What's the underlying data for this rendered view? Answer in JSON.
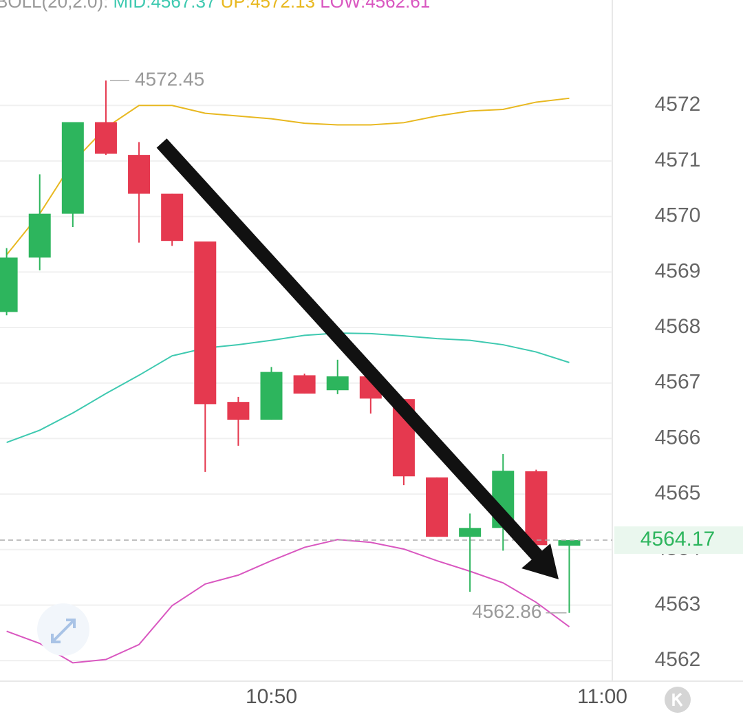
{
  "chart_data": {
    "type": "candlestick",
    "indicator_label": "BOLL(20,2.0):",
    "candles": {
      "up_color": "#2db55d",
      "down_color": "#e5394f",
      "open": [
        4568.28,
        4569.26,
        4570.05,
        4571.7,
        4571.11,
        4570.41,
        4569.55,
        4566.66,
        4566.34,
        4567.14,
        4566.87,
        4567.12,
        4566.71,
        4565.3,
        4564.23,
        4564.39,
        4565.41,
        4564.07
      ],
      "high": [
        4569.43,
        4570.76,
        4571.7,
        4572.45,
        4571.34,
        4570.41,
        4569.55,
        4566.75,
        4567.29,
        4567.17,
        4567.42,
        4567.12,
        4566.71,
        4565.3,
        4564.65,
        4565.72,
        4565.44,
        4564.17
      ],
      "low": [
        4568.22,
        4569.03,
        4569.81,
        4571.11,
        4569.53,
        4569.47,
        4565.4,
        4565.87,
        4566.34,
        4566.81,
        4566.8,
        4566.45,
        4565.16,
        4564.23,
        4563.24,
        4563.98,
        4564.08,
        4562.86
      ],
      "close": [
        4569.26,
        4570.05,
        4571.7,
        4571.13,
        4570.41,
        4569.56,
        4566.62,
        4566.34,
        4567.2,
        4566.81,
        4567.12,
        4566.72,
        4565.32,
        4564.23,
        4564.39,
        4565.42,
        4564.08,
        4564.17
      ]
    },
    "series": [
      {
        "name": "MID:",
        "color": "#3ec9b0",
        "values": [
          4565.93,
          4566.15,
          4566.46,
          4566.81,
          4567.14,
          4567.49,
          4567.63,
          4567.69,
          4567.77,
          4567.86,
          4567.9,
          4567.89,
          4567.85,
          4567.8,
          4567.77,
          4567.69,
          4567.56,
          4567.37
        ]
      },
      {
        "name": "UP:",
        "color": "#e8b820",
        "values": [
          4569.31,
          4570.05,
          4570.98,
          4571.6,
          4572.0,
          4572.0,
          4571.86,
          4571.81,
          4571.76,
          4571.68,
          4571.65,
          4571.65,
          4571.69,
          4571.81,
          4571.9,
          4571.93,
          4572.06,
          4572.13
        ]
      },
      {
        "name": "LOW:",
        "color": "#d957c0",
        "values": [
          4562.53,
          4562.31,
          4561.96,
          4562.02,
          4562.29,
          4562.99,
          4563.38,
          4563.54,
          4563.8,
          4564.04,
          4564.18,
          4564.13,
          4564.01,
          4563.8,
          4563.61,
          4563.4,
          4563.05,
          4562.61
        ]
      }
    ],
    "xlim": [
      -0.2,
      18.3
    ],
    "xticks": [
      {
        "value": 8,
        "label": "10:50"
      },
      {
        "value": 18,
        "label": "11:00"
      }
    ],
    "ylim": [
      4561.63,
      4573.9
    ],
    "yticks": [
      4562,
      4563,
      4564,
      4565,
      4566,
      4567,
      4568,
      4569,
      4570,
      4571,
      4572
    ],
    "grid": true
  }
}
